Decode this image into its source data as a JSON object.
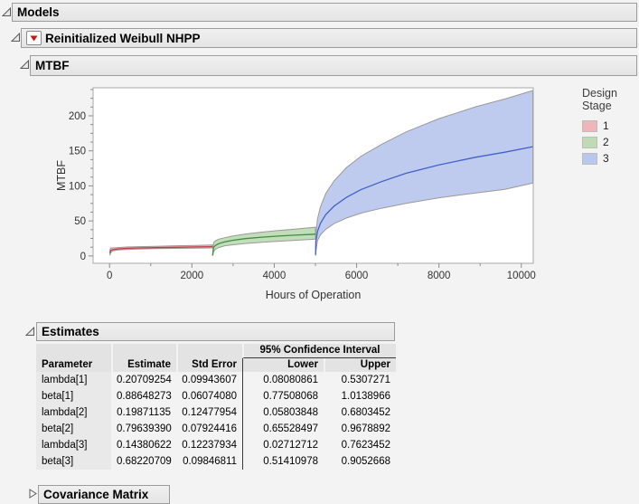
{
  "headers": {
    "models": "Models",
    "model": "Reinitialized Weibull NHPP",
    "mtbf": "MTBF",
    "estimates": "Estimates",
    "covariance": "Covariance Matrix"
  },
  "chart_data": {
    "type": "area",
    "title": "",
    "xlabel": "Hours of Operation",
    "ylabel": "MTBF",
    "xlim": [
      -400,
      10290
    ],
    "ylim": [
      -10.5,
      240
    ],
    "xticks": [
      0,
      2000,
      4000,
      6000,
      8000,
      10000
    ],
    "xminor_step": 1000,
    "yticks": [
      0,
      50,
      100,
      150,
      200
    ],
    "yminor_step": 12.5,
    "grid": "off",
    "legend": {
      "title": "Design Stage",
      "position": "right",
      "entries": [
        {
          "label": "1",
          "color": "#efb6ba"
        },
        {
          "label": "2",
          "color": "#bedbb5"
        },
        {
          "label": "3",
          "color": "#bac7ec"
        }
      ]
    },
    "series": [
      {
        "name": "1",
        "fill": "#f2babe",
        "line": "#c13d44",
        "band_outline": "#9a9a9a",
        "points_t_lower_center_upper": [
          [
            10,
            1,
            4,
            9
          ],
          [
            30,
            5,
            7.8,
            11.5
          ],
          [
            80,
            7.3,
            9,
            11.4
          ],
          [
            200,
            8.5,
            10,
            12
          ],
          [
            400,
            9.3,
            10.8,
            12.7
          ],
          [
            700,
            9.9,
            11.4,
            13.2
          ],
          [
            1100,
            10.4,
            11.9,
            13.8
          ],
          [
            1600,
            10.8,
            12.4,
            14.5
          ],
          [
            2100,
            11.1,
            12.9,
            15.1
          ],
          [
            2500,
            11.4,
            13.2,
            15.7
          ]
        ]
      },
      {
        "name": "2",
        "fill": "#c2ddba",
        "line": "#3f8e3e",
        "band_outline": "#9a9a9a",
        "points_t_lower_center_upper": [
          [
            2505,
            0.3,
            0.8,
            1.5
          ],
          [
            2525,
            6,
            12.2,
            19
          ],
          [
            2570,
            9.5,
            15,
            21.5
          ],
          [
            2650,
            12,
            17.5,
            24
          ],
          [
            2800,
            14.5,
            20.2,
            26
          ],
          [
            3000,
            16,
            22.4,
            28.6
          ],
          [
            3300,
            17.8,
            24.7,
            31.4
          ],
          [
            3700,
            19.6,
            26.8,
            34
          ],
          [
            4100,
            21,
            28.4,
            36.2
          ],
          [
            4500,
            22.3,
            29.7,
            38.2
          ],
          [
            5000,
            24,
            31.1,
            41
          ]
        ]
      },
      {
        "name": "3",
        "fill": "#bfcbee",
        "line": "#4161c8",
        "band_outline": "#9a9a9a",
        "points_t_lower_center_upper": [
          [
            5005,
            0.5,
            1.5,
            3
          ],
          [
            5010,
            6,
            21,
            32
          ],
          [
            5050,
            22,
            35,
            53
          ],
          [
            5120,
            30,
            46.5,
            70
          ],
          [
            5250,
            38,
            59,
            89
          ],
          [
            5450,
            46,
            71,
            107
          ],
          [
            5750,
            54,
            83.5,
            126
          ],
          [
            6100,
            61,
            94.5,
            142
          ],
          [
            6600,
            68,
            106,
            159
          ],
          [
            7200,
            75,
            118,
            177
          ],
          [
            8000,
            83,
            130,
            196
          ],
          [
            8900,
            90,
            141,
            213
          ],
          [
            9600,
            95,
            148,
            224
          ],
          [
            10280,
            104,
            156,
            236
          ]
        ]
      }
    ]
  },
  "estimates_table": {
    "ci_spanner": "95% Confidence Interval",
    "col_headers": [
      "Parameter",
      "Estimate",
      "Std Error",
      "Lower",
      "Upper"
    ],
    "rows": [
      [
        "lambda[1]",
        "0.20709254",
        "0.09943607",
        "0.08080861",
        "0.5307271"
      ],
      [
        "beta[1]",
        "0.88648273",
        "0.06074080",
        "0.77508068",
        "1.0138966"
      ],
      [
        "lambda[2]",
        "0.19871135",
        "0.12477954",
        "0.05803848",
        "0.6803452"
      ],
      [
        "beta[2]",
        "0.79639390",
        "0.07924416",
        "0.65528497",
        "0.9678892"
      ],
      [
        "lambda[3]",
        "0.14380622",
        "0.12237934",
        "0.02712712",
        "0.7623452"
      ],
      [
        "beta[3]",
        "0.68220709",
        "0.09846811",
        "0.51410978",
        "0.9052668"
      ]
    ]
  }
}
